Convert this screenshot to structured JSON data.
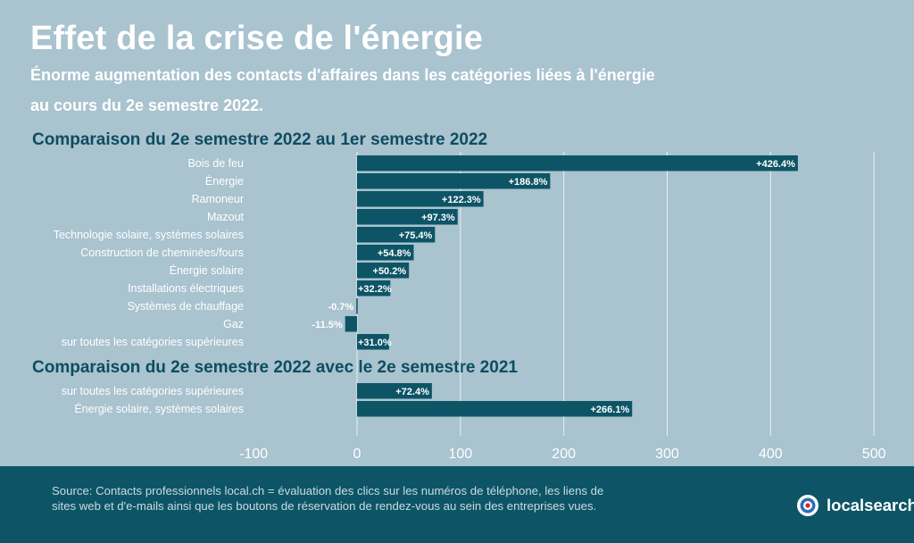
{
  "title": "Effet de la crise de l'énergie",
  "subtitle_line1": "Énorme augmentation des contacts d'affaires dans les catégories liées à l'énergie",
  "subtitle_line2": "au cours du 2e semestre 2022.",
  "footer": {
    "source": "Source: Contacts professionnels local.ch = évaluation des clics sur les numéros de téléphone, les liens de sites web et d'e-mails ainsi que les boutons de réservation de rendez-vous au sein des entreprises vues.",
    "logo_text": "localsearch"
  },
  "colors": {
    "bar": "#0d5566",
    "background": "#a9c3cf",
    "footer": "#0d5566",
    "grid": "#ffffff",
    "label": "#ffffff",
    "section_title": "#0e4c62"
  },
  "chart_data": {
    "type": "bar",
    "orientation": "horizontal",
    "xlim": [
      -100,
      500
    ],
    "xticks": [
      -100,
      0,
      100,
      200,
      300,
      400,
      500
    ],
    "grid": true,
    "sections": [
      {
        "title": "Comparaison du 2e semestre 2022 au 1er semestre 2022",
        "categories": [
          "Bois de feu",
          "Énergie",
          "Ramoneur",
          "Mazout",
          "Technologie solaire, systèmes solaires",
          "Construction de cheminées/fours",
          "Énergie solaire",
          "Installations électriques",
          "Systèmes de chauffage",
          "Gaz",
          "sur toutes les catégories supérieures"
        ],
        "values": [
          426.4,
          186.8,
          122.3,
          97.3,
          75.4,
          54.8,
          50.2,
          32.2,
          -0.7,
          -11.5,
          31.0
        ],
        "labels": [
          "+426.4%",
          "+186.8%",
          "+122.3%",
          "+97.3%",
          "+75.4%",
          "+54.8%",
          "+50.2%",
          "+32.2%",
          "-0.7%",
          "-11.5%",
          "+31.0%"
        ]
      },
      {
        "title": "Comparaison du 2e semestre 2022 avec le 2e semestre 2021",
        "categories": [
          "sur toutes les catégories supérieures",
          "Énergie solaire, systèmes solaires"
        ],
        "values": [
          72.4,
          266.1
        ],
        "labels": [
          "+72.4%",
          "+266.1%"
        ]
      }
    ]
  }
}
